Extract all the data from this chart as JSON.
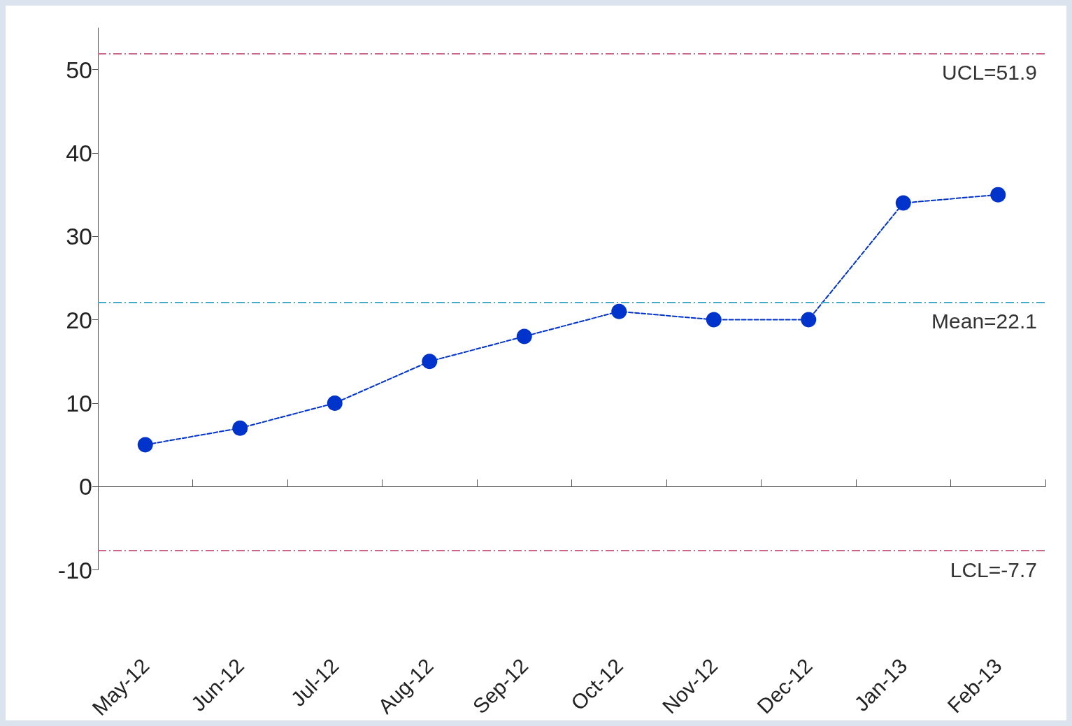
{
  "chart_data": {
    "type": "line",
    "categories": [
      "May-12",
      "Jun-12",
      "Jul-12",
      "Aug-12",
      "Sep-12",
      "Oct-12",
      "Nov-12",
      "Dec-12",
      "Jan-13",
      "Feb-13"
    ],
    "series": [
      {
        "color": "#0033cc",
        "values": [
          5,
          7,
          10,
          15,
          18,
          21,
          20,
          20,
          34,
          35
        ]
      }
    ],
    "ylim": [
      -10,
      55
    ],
    "yticks": [
      -10,
      0,
      10,
      20,
      30,
      40,
      50
    ],
    "ref_lines": [
      {
        "axis": "y",
        "value": 51.9,
        "label": "UCL=51.9",
        "color": "#cc6688",
        "line_style": "dashed"
      },
      {
        "axis": "y",
        "value": 22.1,
        "label": "Mean=22.1",
        "color": "#44aacc",
        "line_style": "dashed"
      },
      {
        "axis": "y",
        "value": -7.7,
        "label": "LCL=-7.7",
        "color": "#cc6688",
        "line_style": "dashed"
      }
    ],
    "marker": "circle",
    "line_style": "dashed"
  }
}
